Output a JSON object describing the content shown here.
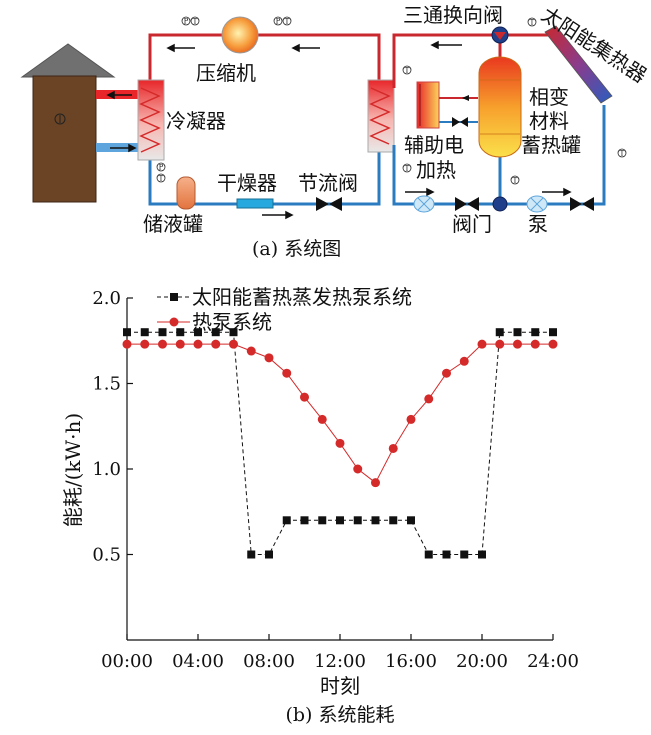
{
  "diagram": {
    "caption": "(a) 系统图",
    "labels": {
      "compressor": "压缩机",
      "condenser": "冷凝器",
      "dryer": "干燥器",
      "throttle_valve": "节流阀",
      "receiver": "储液罐",
      "three_way_valve": "三通换向阀",
      "solar_collector": "太阳能集热器",
      "aux_heater_line1": "辅助电",
      "aux_heater_line2": "加热",
      "pcm_line1": "相变",
      "pcm_line2": "材料",
      "pcm_line3": "蓄热罐",
      "valve": "阀门",
      "pump": "泵"
    },
    "sensor_marks": {
      "temperature": "T",
      "pressure": "P"
    },
    "colors": {
      "hot_pipe": "#c8282e",
      "cold_pipe": "#2a7bbf",
      "house": "#6b4426",
      "roof": "#707070"
    }
  },
  "chart_data": {
    "type": "line",
    "title": "",
    "caption": "(b) 系统能耗",
    "xlabel": "时刻",
    "ylabel": "能耗/(kW·h)",
    "xlim": [
      0,
      24
    ],
    "ylim": [
      0,
      2.0
    ],
    "x_ticks": [
      "00:00",
      "04:00",
      "08:00",
      "12:00",
      "16:00",
      "20:00",
      "24:00"
    ],
    "y_ticks": [
      "0.5",
      "1.0",
      "1.5",
      "2.0"
    ],
    "legend_position": "top",
    "series": [
      {
        "name": "太阳能蓄热蒸发热泵系统",
        "marker": "square",
        "color": "#111111",
        "x": [
          0,
          1,
          2,
          3,
          4,
          5,
          6,
          7,
          8,
          9,
          10,
          11,
          12,
          13,
          14,
          15,
          16,
          17,
          18,
          19,
          20,
          21,
          22,
          23,
          24
        ],
        "y": [
          1.8,
          1.8,
          1.8,
          1.8,
          1.8,
          1.8,
          1.8,
          0.5,
          0.5,
          0.7,
          0.7,
          0.7,
          0.7,
          0.7,
          0.7,
          0.7,
          0.7,
          0.5,
          0.5,
          0.5,
          0.5,
          1.8,
          1.8,
          1.8,
          1.8
        ]
      },
      {
        "name": "热泵系统",
        "marker": "circle",
        "color": "#d42a2a",
        "x": [
          0,
          1,
          2,
          3,
          4,
          5,
          6,
          7,
          8,
          9,
          10,
          11,
          12,
          13,
          14,
          15,
          16,
          17,
          18,
          19,
          20,
          21,
          22,
          23,
          24
        ],
        "y": [
          1.73,
          1.73,
          1.73,
          1.73,
          1.73,
          1.73,
          1.73,
          1.69,
          1.65,
          1.56,
          1.42,
          1.29,
          1.15,
          1.0,
          0.92,
          1.12,
          1.29,
          1.41,
          1.56,
          1.63,
          1.73,
          1.73,
          1.73,
          1.73,
          1.73
        ]
      }
    ]
  }
}
